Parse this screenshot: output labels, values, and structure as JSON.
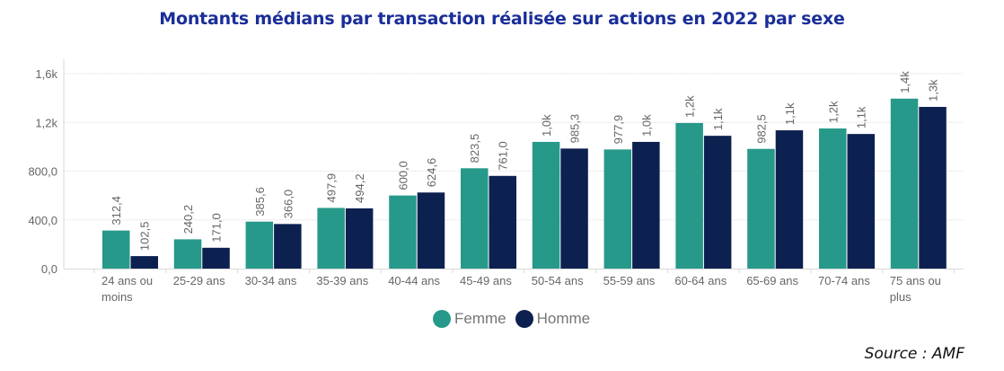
{
  "chart_data": {
    "type": "bar",
    "title": "Montants médians par transaction réalisée sur actions en 2022 par sexe",
    "xlabel": "",
    "ylabel": "",
    "ylim": [
      0,
      1600
    ],
    "yticks": [
      0,
      400,
      800,
      1200,
      1600
    ],
    "ytick_labels": [
      "0,0",
      "400,0",
      "800,0",
      "1,2k",
      "1,6k"
    ],
    "grid": true,
    "legend_position": "bottom-center",
    "categories": [
      [
        "24 ans ou",
        "moins"
      ],
      [
        "25-29 ans"
      ],
      [
        "30-34 ans"
      ],
      [
        "35-39 ans"
      ],
      [
        "40-44 ans"
      ],
      [
        "45-49 ans"
      ],
      [
        "50-54 ans"
      ],
      [
        "55-59 ans"
      ],
      [
        "60-64 ans"
      ],
      [
        "65-69 ans"
      ],
      [
        "70-74 ans"
      ],
      [
        "75 ans ou",
        "plus"
      ]
    ],
    "series": [
      {
        "name": "Femme",
        "color": "#26998a",
        "values": [
          312.4,
          240.2,
          385.6,
          497.9,
          600.0,
          823.5,
          1040,
          977.9,
          1195,
          982.5,
          1150,
          1395
        ],
        "labels": [
          "312,4",
          "240,2",
          "385,6",
          "497,9",
          "600,0",
          "823,5",
          "1,0k",
          "977,9",
          "1,2k",
          "982,5",
          "1,2k",
          "1,4k"
        ]
      },
      {
        "name": "Homme",
        "color": "#0d2150",
        "values": [
          102.5,
          171.0,
          366.0,
          494.2,
          624.6,
          761.0,
          985.3,
          1040,
          1090,
          1135,
          1105,
          1327
        ],
        "labels": [
          "102,5",
          "171,0",
          "366,0",
          "494,2",
          "624,6",
          "761,0",
          "985,3",
          "1,0k",
          "1,1k",
          "1,1k",
          "1,1k",
          "1,3k"
        ]
      }
    ]
  },
  "source": "Source : AMF"
}
